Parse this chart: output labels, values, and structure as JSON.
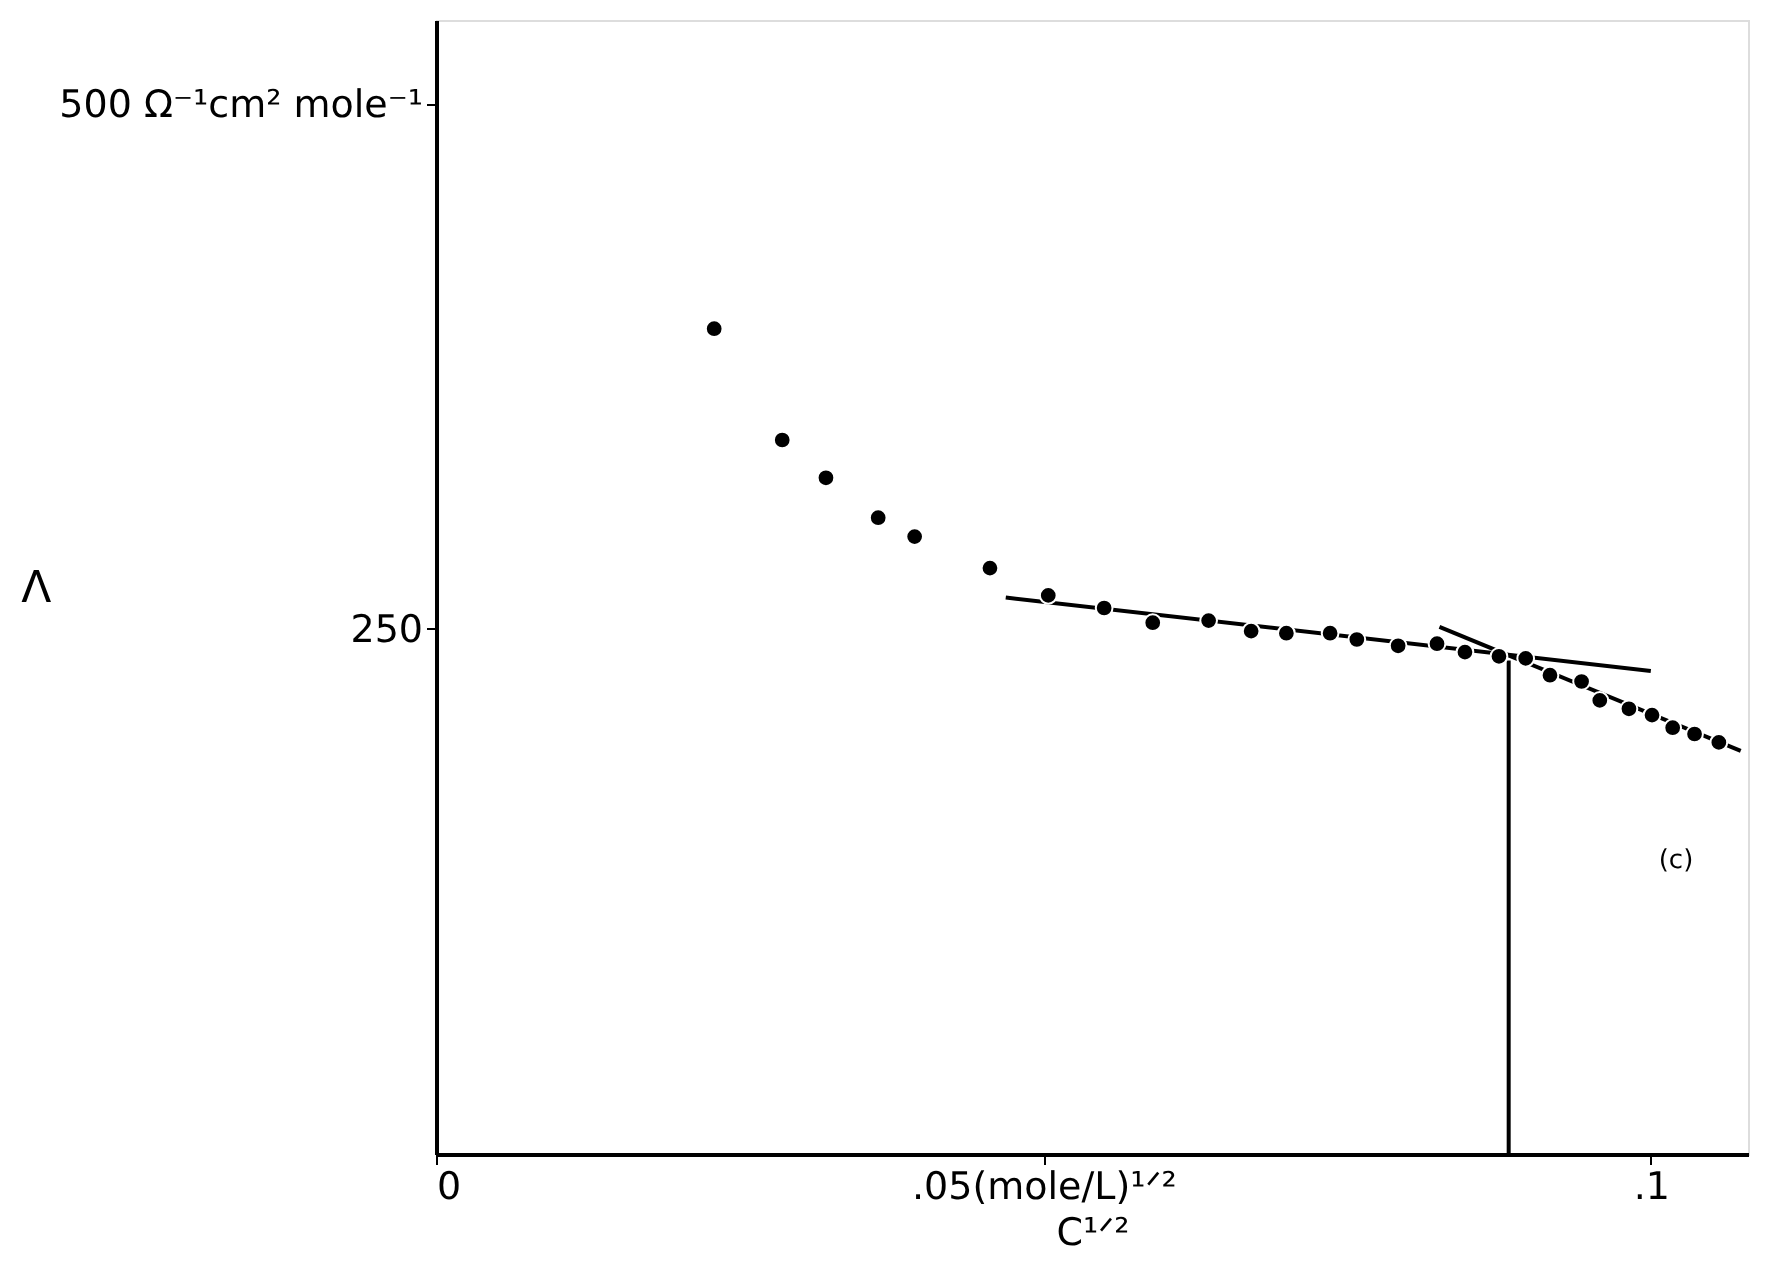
{
  "chart_data": {
    "type": "scatter",
    "xlabel": "C¹ᐟ²",
    "ylabel": "Λ",
    "xlim": [
      0,
      0.108
    ],
    "ylim": [
      0,
      540
    ],
    "xticks": [
      {
        "value": 0,
        "label": "0"
      },
      {
        "value": 0.05,
        "label": ".05(mole/L)¹ᐟ²"
      },
      {
        "value": 0.1,
        "label": ".1"
      }
    ],
    "yticks": [
      250,
      {
        "value": 500,
        "label": "500 Ω⁻¹cm² mole⁻¹"
      }
    ],
    "grid": false,
    "series": [
      {
        "marker": "circle",
        "color": "#000000",
        "x": [
          0.0229,
          0.0285,
          0.0321,
          0.0364,
          0.0394,
          0.0456,
          0.0504,
          0.055,
          0.059,
          0.0636,
          0.0671,
          0.07,
          0.0736,
          0.0758,
          0.0792,
          0.0824,
          0.0847,
          0.0875,
          0.0897,
          0.0917,
          0.0943,
          0.0958,
          0.0982,
          0.1001,
          0.1018,
          0.1036,
          0.1056
        ],
        "values": [
          393,
          340,
          322,
          303,
          294,
          279,
          266,
          260,
          253,
          254,
          249,
          248,
          248,
          245,
          242,
          243,
          239,
          237,
          236,
          228,
          225,
          216,
          212,
          209,
          203,
          200,
          196
        ]
      },
      {
        "type": "line",
        "color": "#000000",
        "line_style": "solid",
        "x": [
          0.0469,
          0.1
        ],
        "values": [
          265,
          230
        ]
      },
      {
        "type": "line",
        "color": "#000000",
        "line_style": "solid",
        "x": [
          0.0826,
          0.1074
        ],
        "values": [
          251,
          192
        ]
      },
      {
        "type": "line",
        "color": "#000000",
        "line_style": "solid",
        "x": [
          0.0883,
          0.0883
        ],
        "values": [
          0,
          235
        ]
      }
    ],
    "annotations": [
      "(c)"
    ]
  }
}
